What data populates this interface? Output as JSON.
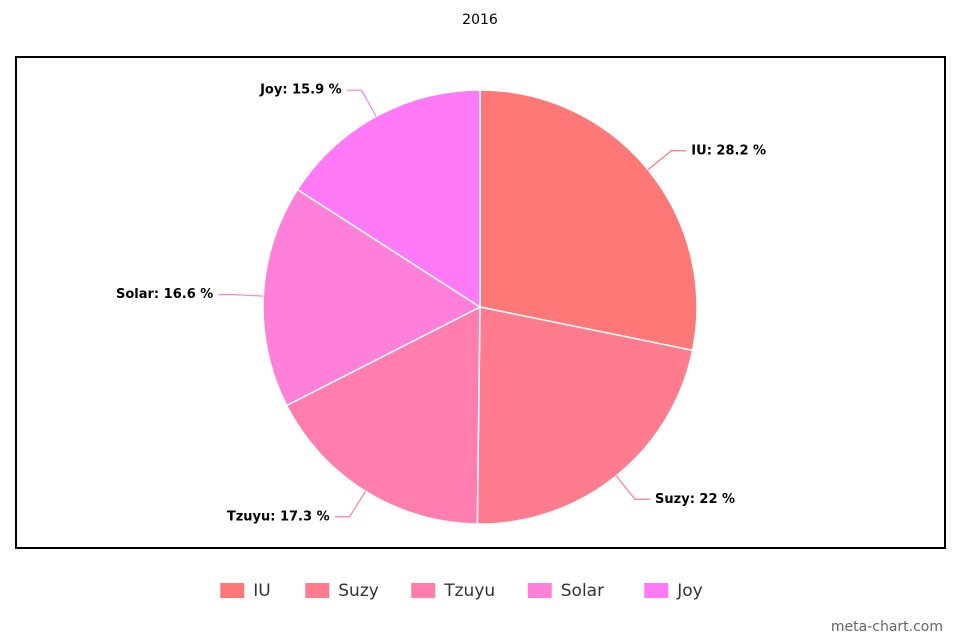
{
  "chart_data": {
    "type": "pie",
    "title": "2016",
    "categories": [
      "IU",
      "Suzy",
      "Tzuyu",
      "Solar",
      "Joy"
    ],
    "values": [
      28.2,
      22,
      17.3,
      16.6,
      15.9
    ],
    "value_labels": [
      "IU: 28.2 %",
      "Suzy: 22 %",
      "Tzuyu: 17.3 %",
      "Solar: 16.6 %",
      "Joy: 15.9 %"
    ],
    "colors": [
      "#ff7878",
      "#ff7b8e",
      "#ff7daf",
      "#ff80d8",
      "#ff7af7"
    ],
    "legend": "bottom",
    "watermark": "meta-chart.com"
  }
}
